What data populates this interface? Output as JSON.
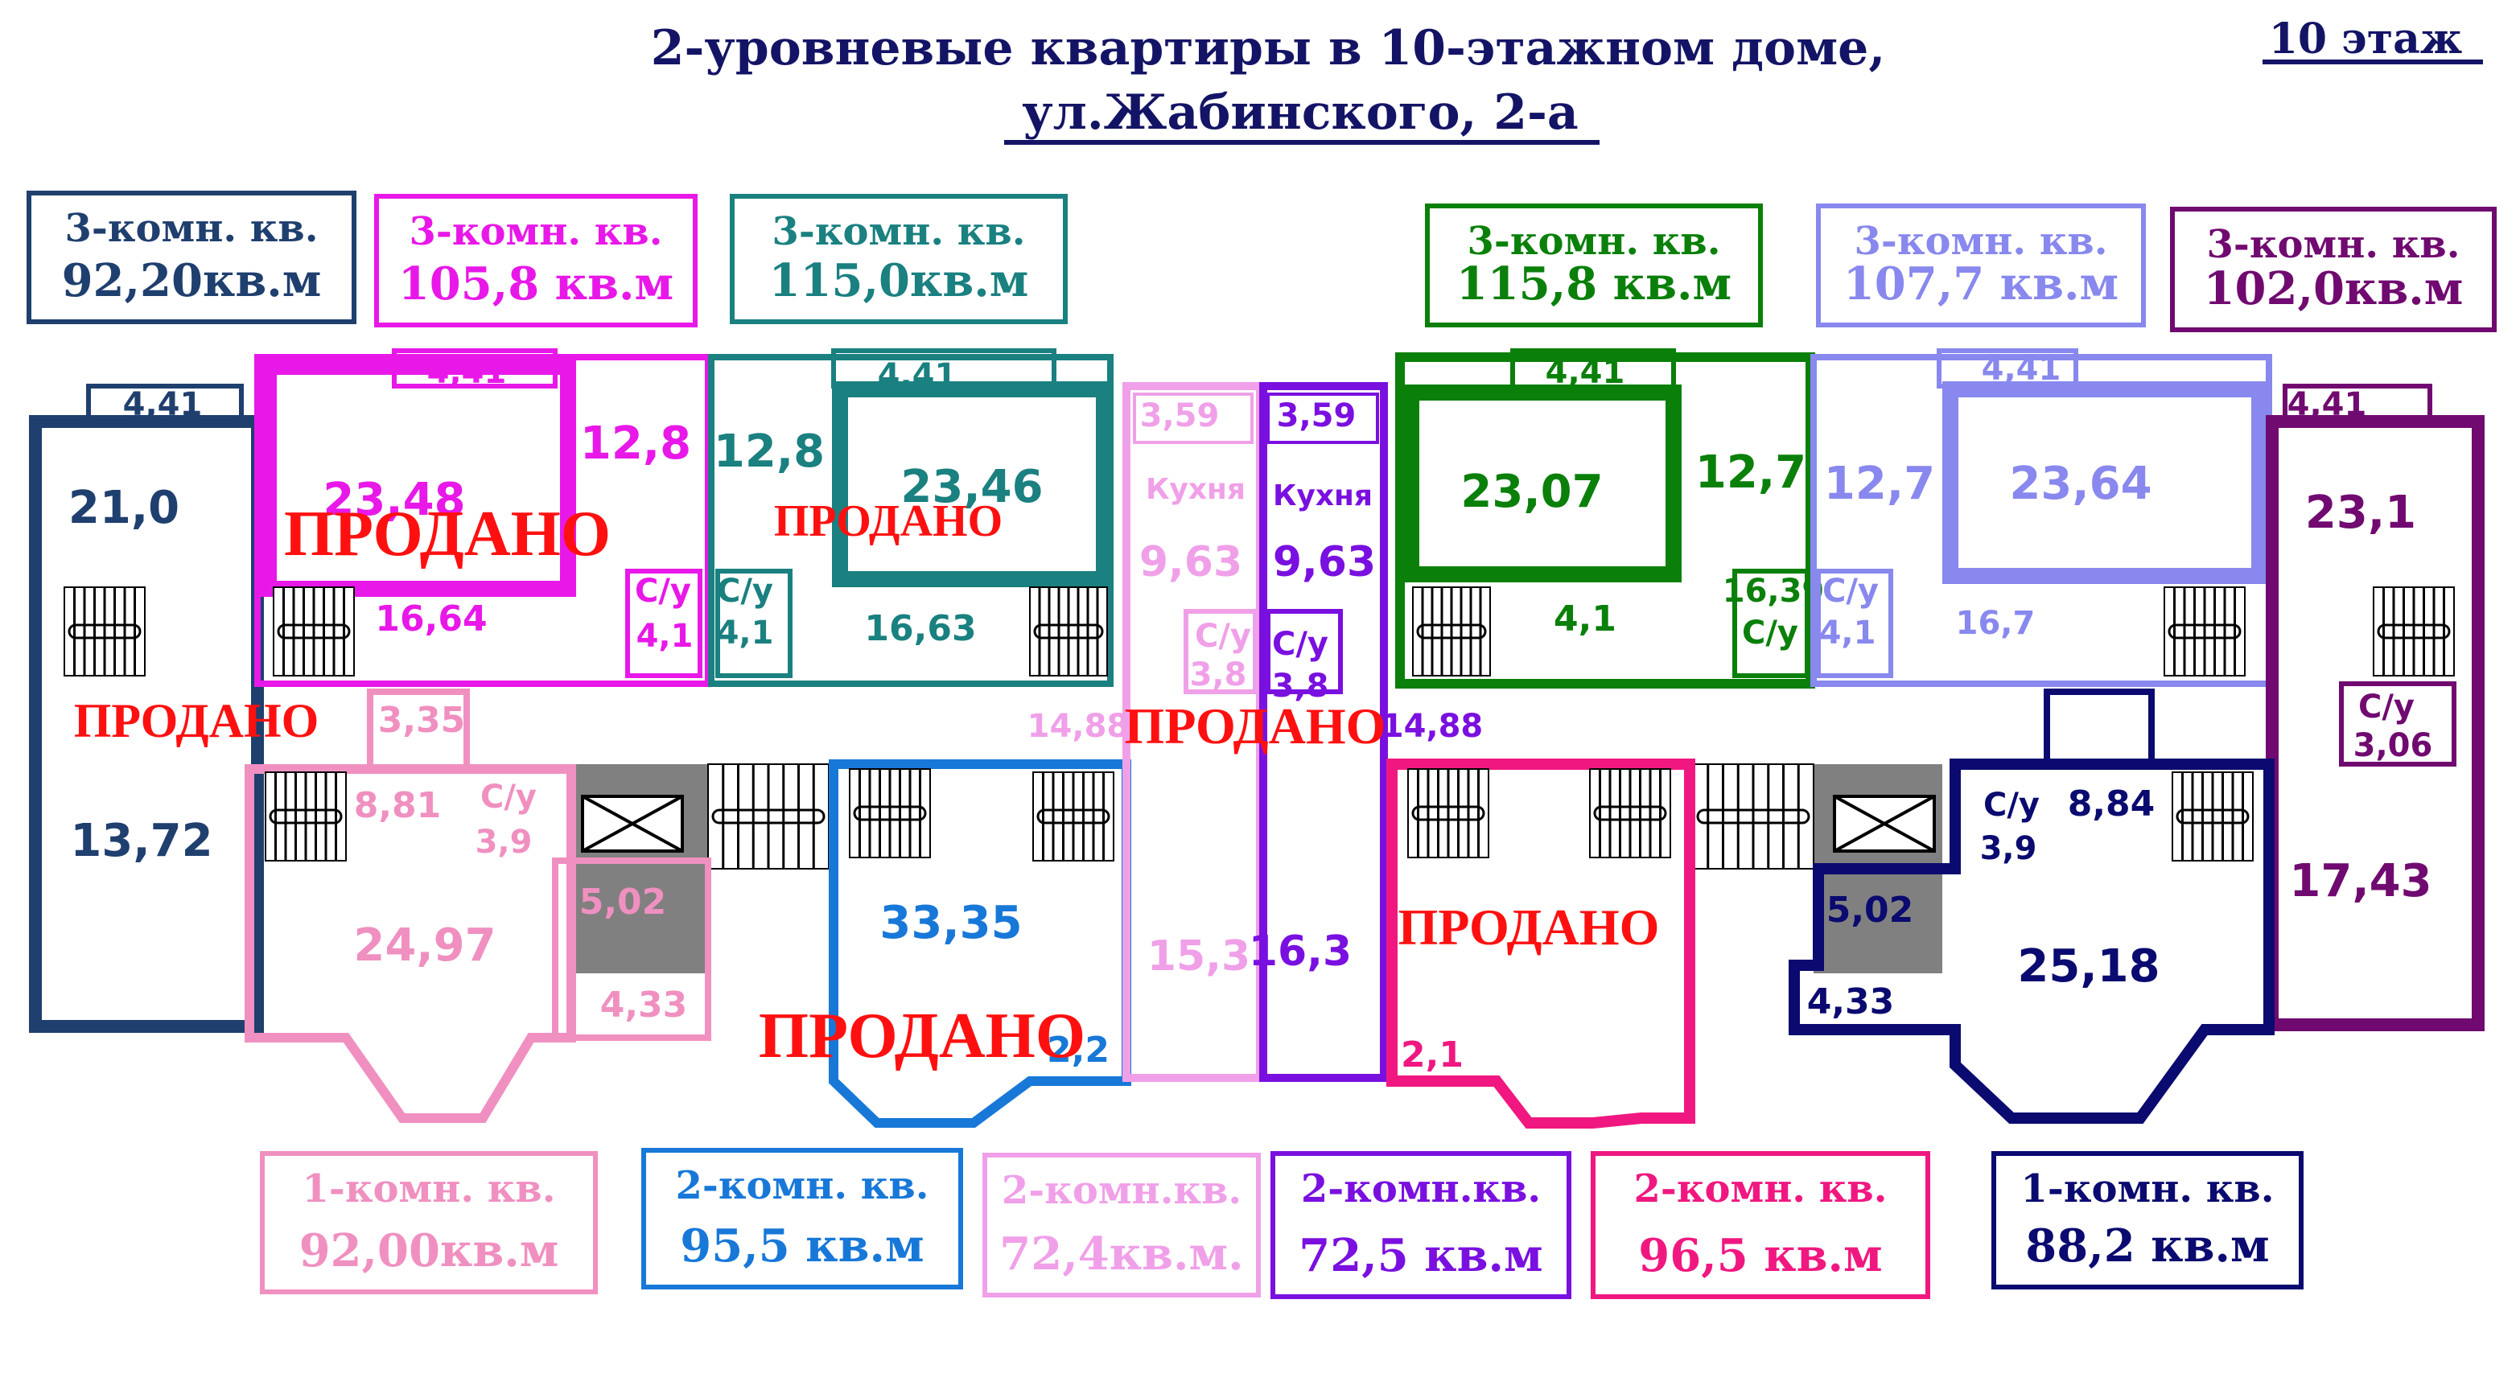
{
  "header": {
    "title_line1": "2-уровневые квартиры в 10-этажном доме,",
    "title_line2": "ул.Жабинского, 2-а",
    "floor_label": "10 этаж"
  },
  "apartments": [
    {
      "id": "A",
      "type": "3-комн. кв.",
      "area": "92,20кв.м",
      "color": "#1f3f6e",
      "status": "ПРОДАНО",
      "rooms": [
        "4,41",
        "21,0",
        "13,72"
      ]
    },
    {
      "id": "B",
      "type": "3-комн. кв.",
      "area": "105,8 кв.м",
      "color": "#e818e8",
      "status": "ПРОДАНО",
      "rooms": [
        "4,41",
        "23,48",
        "12,8",
        "16,64",
        "С/у",
        "4,1"
      ]
    },
    {
      "id": "C",
      "type": "3-комн. кв.",
      "area": "115,0кв.м",
      "color": "#1a8080",
      "status": "ПРОДАНО",
      "rooms": [
        "4,41",
        "12,8",
        "23,46",
        "С/у",
        "4,1",
        "16,63"
      ]
    },
    {
      "id": "F",
      "type": "3-комн. кв.",
      "area": "115,8 кв.м",
      "color": "#0a800a",
      "rooms": [
        "4,41",
        "23,07",
        "12,7",
        "16,39",
        "С/у",
        "4,1"
      ]
    },
    {
      "id": "G",
      "type": "3-комн. кв.",
      "area": "107,7 кв.м",
      "color": "#8888ee",
      "rooms": [
        "4,41",
        "12,7",
        "23,64",
        "С/у",
        "4,1",
        "16,7"
      ]
    },
    {
      "id": "H",
      "type": "3-комн. кв.",
      "area": "102,0кв.м",
      "color": "#700a70",
      "rooms": [
        "4,41",
        "23,1",
        "С/у",
        "3,06",
        "17,43"
      ]
    },
    {
      "id": "I",
      "type": "1-комн. кв.",
      "area": "92,00кв.м",
      "color": "#f090c0",
      "rooms": [
        "3,35",
        "8,81",
        "С/у",
        "3,9",
        "24,97",
        "5,02",
        "4,33"
      ]
    },
    {
      "id": "J",
      "type": "2-комн. кв.",
      "area": "95,5 кв.м",
      "color": "#1878d8",
      "status": "ПРОДАНО",
      "rooms": [
        "33,35",
        "2,2"
      ]
    },
    {
      "id": "D",
      "type": "2-комн.кв.",
      "area": "72,4кв.м.",
      "color": "#f0a0e8",
      "rooms": [
        "3,59",
        "Кухня",
        "9,63",
        "С/у",
        "3,8",
        "14,88",
        "15,3"
      ]
    },
    {
      "id": "E",
      "type": "2-комн.кв.",
      "area": "72,5 кв.м",
      "color": "#7a10e0",
      "status": "ПРОДАНО",
      "rooms": [
        "3,59",
        "Кухня",
        "9,63",
        "С/у",
        "3,8",
        "14,88",
        "16,3"
      ]
    },
    {
      "id": "K",
      "type": "2-комн. кв.",
      "area": "96,5 кв.м",
      "color": "#f01880",
      "status": "ПРОДАНО",
      "rooms": [
        "2,1"
      ]
    },
    {
      "id": "L",
      "type": "1-комн. кв.",
      "area": "88,2 кв.м",
      "color": "#0a0a70",
      "rooms": [
        "С/у",
        "3,9",
        "8,84",
        "5,02",
        "4,33",
        "25,18"
      ]
    }
  ],
  "core_color": "#808080"
}
